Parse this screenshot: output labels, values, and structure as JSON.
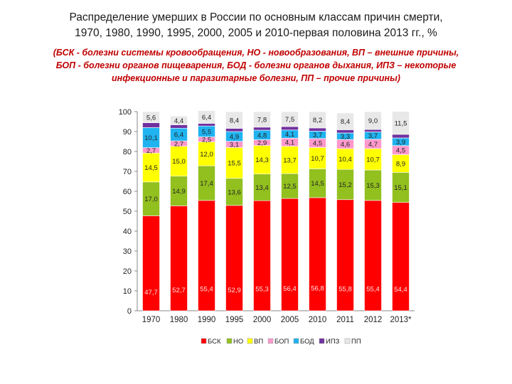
{
  "chart_data": {
    "type": "bar",
    "stacked": true,
    "title_line1": "Распределение умерших в России по основным классам причин смерти,",
    "title_line2": "1970, 1980, 1990, 1995, 2000, 2005 и 2010-первая половина 2013 гг., %",
    "subtitle_line1": "(БСК - болезни системы кровообращения, НО - новообразования, ВП – внешние причины,",
    "subtitle_line2": "БОП - болезни органов пищеварения, БОД - болезни органов дыхания, ИПЗ – некоторые",
    "subtitle_line3": "инфекционные и паразитарные болезни, ПП – прочие причины)",
    "categories": [
      "1970",
      "1980",
      "1990",
      "1995",
      "2000",
      "2005",
      "2010",
      "2011",
      "2012",
      "2013*"
    ],
    "ylim": [
      0,
      100
    ],
    "yticks": [
      "0",
      "10",
      "20",
      "30",
      "40",
      "50",
      "60",
      "70",
      "80",
      "90",
      "100"
    ],
    "legend_position": "bottom",
    "series": [
      {
        "name": "БСК",
        "color": "#ff0000",
        "values": [
          47.7,
          52.7,
          55.4,
          52.9,
          55.3,
          56.4,
          56.8,
          55.8,
          55.4,
          54.4
        ],
        "labels": [
          "47,7",
          "52,7",
          "55,4",
          "52,9",
          "55,3",
          "56,4",
          "56,8",
          "55,8",
          "55,4",
          "54,4"
        ]
      },
      {
        "name": "НО",
        "color": "#92c01f",
        "values": [
          17.0,
          14.9,
          17.4,
          13.6,
          13.4,
          12.5,
          14.5,
          15.2,
          15.3,
          15.1
        ],
        "labels": [
          "17,0",
          "14,9",
          "17,4",
          "13,6",
          "13,4",
          "12,5",
          "14,5",
          "15,2",
          "15,3",
          "15,1"
        ]
      },
      {
        "name": "ВП",
        "color": "#ffff00",
        "values": [
          14.5,
          15.0,
          12.0,
          15.5,
          14.3,
          13.7,
          10.7,
          10.4,
          10.7,
          8.9
        ],
        "labels": [
          "14,5",
          "15,0",
          "12,0",
          "15,5",
          "14,3",
          "13,7",
          "10,7",
          "10,4",
          "10,7",
          "8,9"
        ]
      },
      {
        "name": "БОП",
        "color": "#ff99cc",
        "values": [
          2.7,
          2.7,
          2.5,
          3.1,
          2.9,
          4.1,
          4.5,
          4.6,
          4.7,
          4.5
        ],
        "labels": [
          "2,7",
          "2,7",
          "2,5",
          "3,1",
          "2,9",
          "4,1",
          "4,5",
          "4,6",
          "4,7",
          "4,5"
        ]
      },
      {
        "name": "БОД",
        "color": "#1fb3f0",
        "values": [
          10.1,
          6.4,
          5.5,
          4.9,
          4.8,
          4.1,
          3.7,
          3.3,
          3.7,
          3.9
        ],
        "labels": [
          "10,1",
          "6,4",
          "5,5",
          "4,9",
          "4,8",
          "4,1",
          "3,7",
          "3,3",
          "3,7",
          "3,9"
        ]
      },
      {
        "name": "ИПЗ",
        "color": "#7030a0",
        "values": [
          2.4,
          1.7,
          1.3,
          1.6,
          1.5,
          1.7,
          1.6,
          1.6,
          1.2,
          1.8
        ],
        "labels": [
          "",
          "",
          "",
          "",
          "",
          "",
          "",
          "",
          "",
          ""
        ]
      },
      {
        "name": "ПП",
        "color": "#e8e8e8",
        "values": [
          5.6,
          4.4,
          6.4,
          8.4,
          7.8,
          7.5,
          8.2,
          8.4,
          9.0,
          11.5
        ],
        "labels": [
          "5,6",
          "4,4",
          "6,4",
          "8,4",
          "7,8",
          "7,5",
          "8,2",
          "8,4",
          "9,0",
          "11,5"
        ]
      }
    ]
  }
}
